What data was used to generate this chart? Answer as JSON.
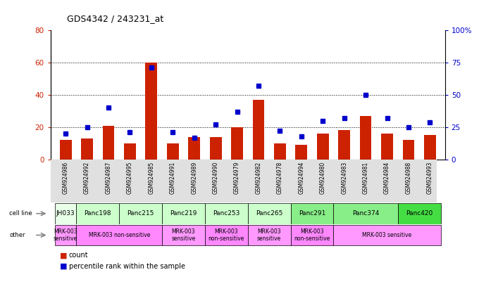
{
  "title": "GDS4342 / 243231_at",
  "samples": [
    "GSM924986",
    "GSM924992",
    "GSM924987",
    "GSM924995",
    "GSM924985",
    "GSM924991",
    "GSM924989",
    "GSM924990",
    "GSM924979",
    "GSM924982",
    "GSM924978",
    "GSM924994",
    "GSM924980",
    "GSM924983",
    "GSM924981",
    "GSM924984",
    "GSM924988",
    "GSM924993"
  ],
  "counts": [
    12,
    13,
    21,
    10,
    60,
    10,
    14,
    14,
    20,
    37,
    10,
    9,
    16,
    18,
    27,
    16,
    12,
    15
  ],
  "percentiles": [
    20,
    25,
    40,
    21,
    71,
    21,
    17,
    27,
    37,
    57,
    22,
    18,
    30,
    32,
    50,
    32,
    25,
    29
  ],
  "cell_lines": [
    "JH033",
    "Panc198",
    "Panc215",
    "Panc219",
    "Panc253",
    "Panc265",
    "Panc291",
    "Panc374",
    "Panc420"
  ],
  "cell_line_spans": [
    [
      0,
      1
    ],
    [
      1,
      3
    ],
    [
      3,
      5
    ],
    [
      5,
      7
    ],
    [
      7,
      9
    ],
    [
      9,
      11
    ],
    [
      11,
      13
    ],
    [
      13,
      16
    ],
    [
      16,
      18
    ]
  ],
  "cell_line_colors": [
    "#e8ffe8",
    "#ccffcc",
    "#ccffcc",
    "#ccffcc",
    "#ccffcc",
    "#ccffcc",
    "#88ee88",
    "#88ee88",
    "#44dd44"
  ],
  "other_data": [
    [
      0,
      1,
      "MRK-003\nsensitive",
      "#ff99ff"
    ],
    [
      1,
      5,
      "MRK-003 non-sensitive",
      "#ff88ff"
    ],
    [
      5,
      7,
      "MRK-003\nsensitive",
      "#ff99ff"
    ],
    [
      7,
      9,
      "MRK-003\nnon-sensitive",
      "#ff88ff"
    ],
    [
      9,
      11,
      "MRK-003\nsensitive",
      "#ff99ff"
    ],
    [
      11,
      13,
      "MRK-003\nnon-sensitive",
      "#ff88ff"
    ],
    [
      13,
      18,
      "MRK-003 sensitive",
      "#ff99ff"
    ]
  ],
  "bar_color": "#cc2200",
  "dot_color": "#0000cc",
  "ylim_left": [
    0,
    80
  ],
  "ylim_right": [
    0,
    100
  ],
  "yticks_left": [
    0,
    20,
    40,
    60,
    80
  ],
  "yticks_right": [
    0,
    25,
    50,
    75,
    100
  ],
  "ytick_labels_right": [
    "0",
    "25",
    "50",
    "75",
    "100%"
  ]
}
